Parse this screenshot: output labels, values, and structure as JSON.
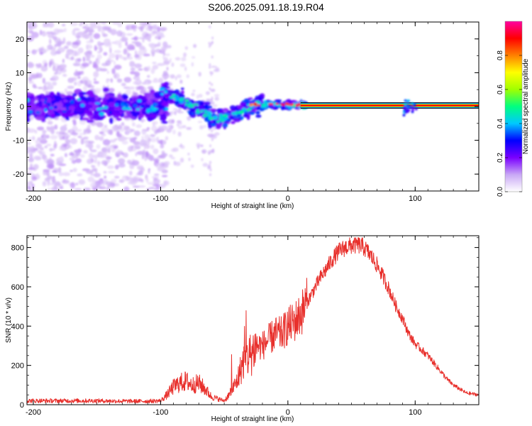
{
  "title": "S206.2025.091.18.19.R04",
  "spectrogram": {
    "xlabel": "Height of straight line (km)",
    "ylabel": "Frequency (Hz)",
    "xlim": [
      -205,
      150
    ],
    "ylim": [
      -25,
      25
    ],
    "xticks": [
      -200,
      -100,
      0,
      100
    ],
    "yticks": [
      -20,
      -10,
      0,
      10,
      20
    ],
    "colorbar": {
      "label": "Normalized spectral amplitude",
      "range": [
        0,
        1
      ],
      "ticks": [
        "0.0",
        "0.2",
        "0.4",
        "0.6",
        "0.8"
      ],
      "colors": [
        "#ffffff",
        "#c9a8f5",
        "#7a00ff",
        "#0000ff",
        "#00c8ff",
        "#00ff80",
        "#a0ff00",
        "#ffff00",
        "#ff8000",
        "#ff0000",
        "#ff00a0"
      ]
    }
  },
  "chart_data": {
    "type": "line",
    "title": "",
    "xlabel": "Height of straight line (km)",
    "ylabel": "SNR (10 * v/v)",
    "xlim": [
      -205,
      150
    ],
    "ylim": [
      0,
      860
    ],
    "xticks": [
      -200,
      -100,
      0,
      100
    ],
    "yticks": [
      0,
      200,
      400,
      600,
      800
    ],
    "grid": false,
    "series": [
      {
        "color": "#e8302c",
        "x": [
          -205,
          -190,
          -170,
          -150,
          -130,
          -110,
          -100,
          -95,
          -90,
          -85,
          -80,
          -75,
          -70,
          -65,
          -60,
          -55,
          -50,
          -45,
          -40,
          -35,
          -30,
          -25,
          -20,
          -15,
          -10,
          -5,
          0,
          5,
          10,
          15,
          20,
          25,
          30,
          35,
          40,
          45,
          50,
          55,
          60,
          65,
          70,
          75,
          80,
          85,
          90,
          95,
          100,
          105,
          110,
          115,
          120,
          125,
          130,
          135,
          140,
          145,
          150
        ],
        "y": [
          20,
          20,
          20,
          20,
          18,
          18,
          20,
          50,
          90,
          110,
          120,
          100,
          110,
          80,
          40,
          30,
          20,
          60,
          120,
          220,
          250,
          300,
          300,
          330,
          360,
          360,
          400,
          420,
          460,
          520,
          580,
          640,
          690,
          740,
          780,
          800,
          810,
          815,
          800,
          760,
          710,
          650,
          580,
          500,
          440,
          360,
          310,
          280,
          250,
          210,
          170,
          130,
          100,
          80,
          60,
          55,
          50
        ]
      }
    ]
  }
}
